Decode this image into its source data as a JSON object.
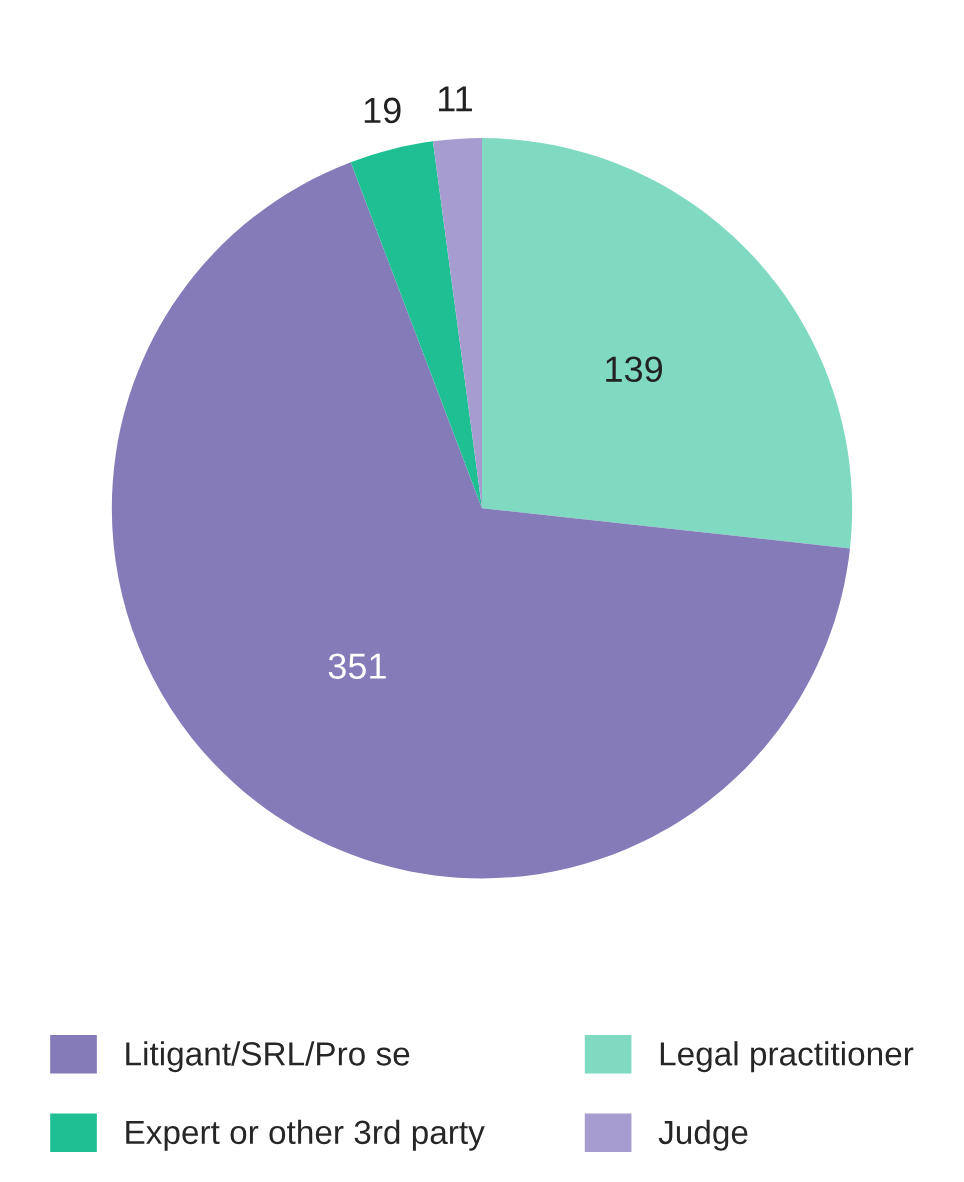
{
  "chart_data": {
    "type": "pie",
    "categories": [
      "Legal practitioner",
      "Litigant/SRL/Pro se",
      "Expert or other 3rd party",
      "Judge"
    ],
    "values": [
      139,
      351,
      19,
      11
    ],
    "colors": [
      "#80d9c1",
      "#867bb9",
      "#1dbf93",
      "#a79ccf"
    ],
    "data_labels": true,
    "legend": "bottom"
  }
}
